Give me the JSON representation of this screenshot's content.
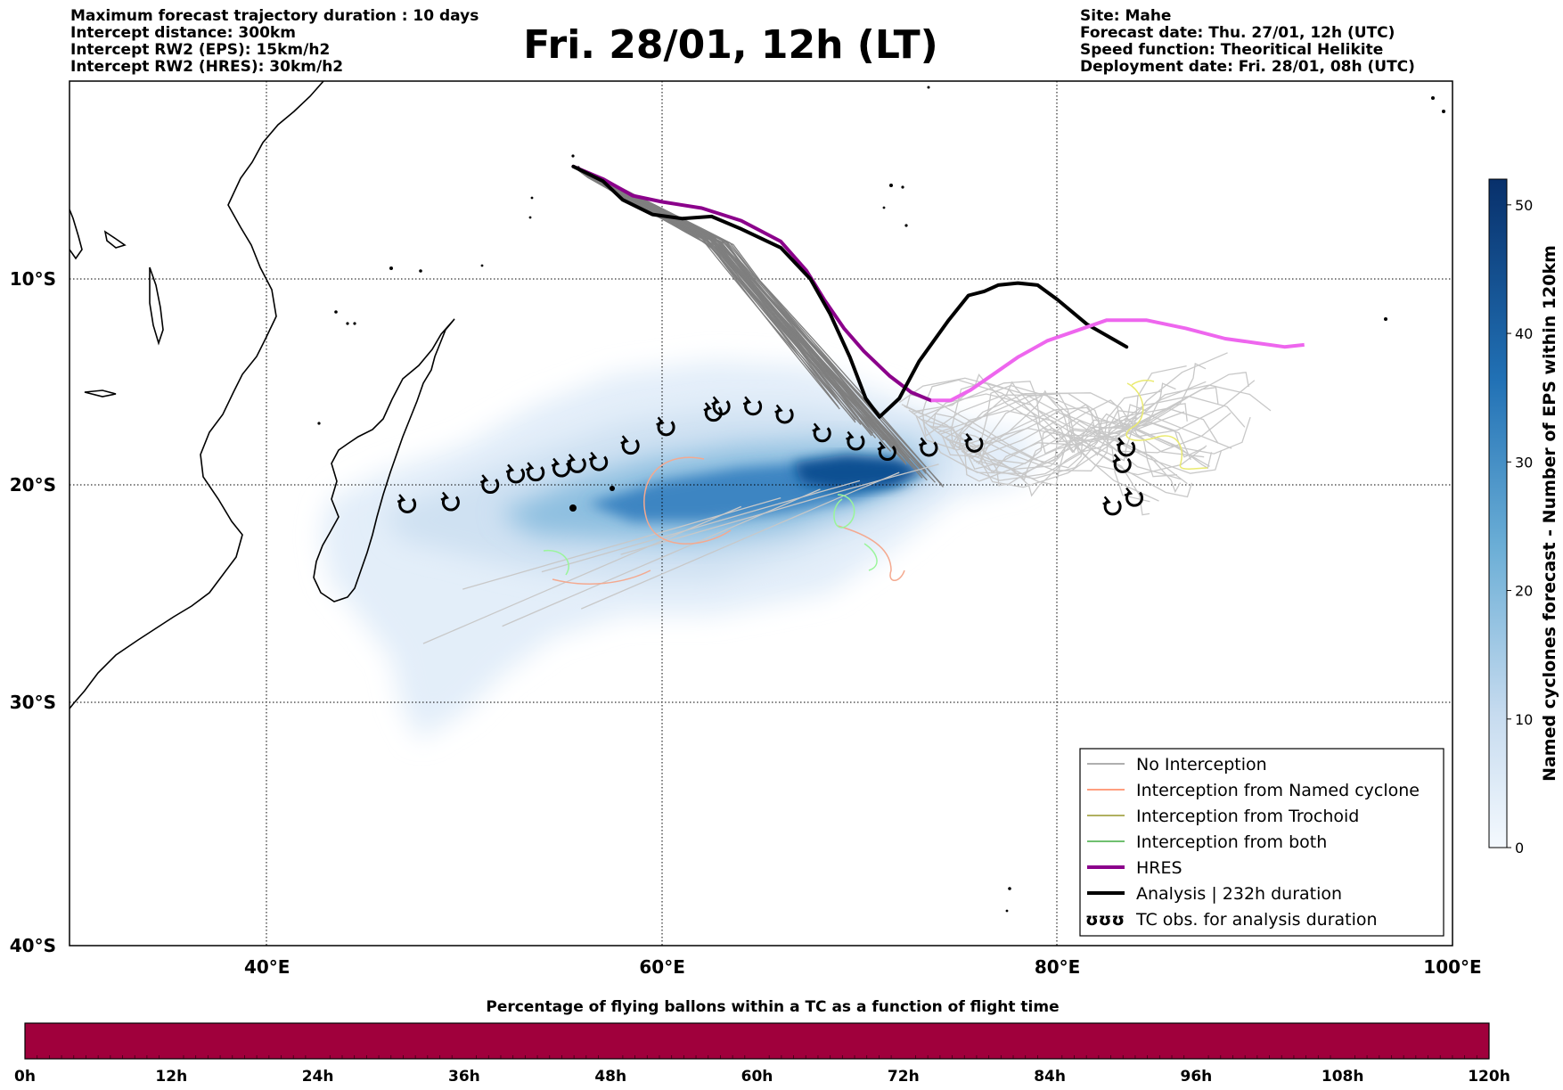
{
  "header": {
    "left": [
      "Maximum forecast trajectory duration : 10 days",
      "Intercept distance: 300km",
      "Intercept RW2 (EPS):  15km/h2",
      "Intercept RW2 (HRES): 30km/h2"
    ],
    "right": [
      "Site: Mahe",
      "Forecast date: Thu. 27/01, 12h (UTC)",
      "Speed function: Theoritical Helikite",
      "Deployment date: Fri. 28/01, 08h (UTC)"
    ],
    "title": "Fri. 28/01, 12h (LT)"
  },
  "map": {
    "lon_range": [
      30,
      100
    ],
    "lat_range": [
      -40,
      -0.5
    ],
    "lon_ticks": [
      {
        "value": 40,
        "label": "40°E"
      },
      {
        "value": 60,
        "label": "60°E"
      },
      {
        "value": 80,
        "label": "80°E"
      },
      {
        "value": 100,
        "label": "100°E"
      }
    ],
    "lat_ticks": [
      {
        "value": -10,
        "label": "10°S"
      },
      {
        "value": -20,
        "label": "20°S"
      },
      {
        "value": -30,
        "label": "30°S"
      },
      {
        "value": -40,
        "label": "40°S"
      }
    ],
    "colors": {
      "no_interception": "#7f7f7f",
      "no_interception_light": "#c8c8c8",
      "named_cyclone": "#ff6633",
      "named_cyclone_light": "#f4a98f",
      "trochoid": "#808000",
      "trochoid_light": "#eaea70",
      "both": "#1a9a1a",
      "both_light": "#9af59a",
      "hres": "#8b008b",
      "hres_light": "#ee66ee",
      "analysis": "#000000",
      "density_low": "#deebf7",
      "density_high": "#08306b"
    },
    "analysis_track": [
      [
        55.5,
        -4.6
      ],
      [
        57,
        -5.3
      ],
      [
        58,
        -6.2
      ],
      [
        59.5,
        -6.9
      ],
      [
        61,
        -7.1
      ],
      [
        62.5,
        -7.0
      ],
      [
        64,
        -7.6
      ],
      [
        66,
        -8.5
      ],
      [
        67.5,
        -10
      ],
      [
        68.5,
        -11.7
      ],
      [
        69.5,
        -13.8
      ],
      [
        70.3,
        -15.8
      ],
      [
        71,
        -16.7
      ],
      [
        72,
        -15.8
      ],
      [
        73,
        -14.0
      ],
      [
        74.5,
        -12.0
      ],
      [
        75.5,
        -10.8
      ],
      [
        76.3,
        -10.6
      ],
      [
        77,
        -10.3
      ],
      [
        78,
        -10.2
      ],
      [
        79,
        -10.3
      ],
      [
        80,
        -11
      ],
      [
        81.5,
        -12.2
      ],
      [
        83.5,
        -13.3
      ]
    ],
    "hres_track": [
      [
        55.5,
        -4.6
      ],
      [
        57,
        -5.2
      ],
      [
        58.5,
        -6.0
      ],
      [
        60,
        -6.3
      ],
      [
        62,
        -6.6
      ],
      [
        64,
        -7.2
      ],
      [
        66,
        -8.2
      ],
      [
        67.3,
        -9.6
      ],
      [
        68.2,
        -11.0
      ],
      [
        69.2,
        -12.4
      ],
      [
        70.2,
        -13.5
      ],
      [
        71.5,
        -14.7
      ],
      [
        72.6,
        -15.5
      ],
      [
        73.6,
        -15.9
      ],
      [
        74.6,
        -15.9
      ],
      [
        75.6,
        -15.4
      ],
      [
        76.8,
        -14.6
      ],
      [
        78,
        -13.8
      ],
      [
        79.5,
        -13.0
      ],
      [
        81,
        -12.5
      ],
      [
        82.5,
        -12.0
      ],
      [
        84.5,
        -12.0
      ],
      [
        86.5,
        -12.4
      ],
      [
        88.5,
        -12.9
      ],
      [
        90,
        -13.1
      ],
      [
        91.5,
        -13.3
      ],
      [
        92.5,
        -13.2
      ]
    ],
    "tc_obs": [
      [
        47.1,
        -20.9
      ],
      [
        49.3,
        -20.8
      ],
      [
        51.3,
        -20.0
      ],
      [
        52.6,
        -19.5
      ],
      [
        53.6,
        -19.4
      ],
      [
        54.9,
        -19.2
      ],
      [
        55.7,
        -19.0
      ],
      [
        56.8,
        -18.9
      ],
      [
        58.4,
        -18.1
      ],
      [
        60.2,
        -17.2
      ],
      [
        62.6,
        -16.5
      ],
      [
        63.0,
        -16.2
      ],
      [
        64.6,
        -16.2
      ],
      [
        66.2,
        -16.6
      ],
      [
        68.1,
        -17.5
      ],
      [
        69.8,
        -17.9
      ],
      [
        71.4,
        -18.4
      ],
      [
        73.5,
        -18.2
      ],
      [
        75.8,
        -18.0
      ],
      [
        83.3,
        -19.0
      ],
      [
        83.5,
        -18.2
      ],
      [
        82.8,
        -21.0
      ],
      [
        83.9,
        -20.6
      ]
    ]
  },
  "legend": [
    {
      "label": "No Interception",
      "color": "#7f7f7f",
      "width": 1.2
    },
    {
      "label": "Interception from Named cyclone",
      "color": "#ff6633",
      "width": 1.2
    },
    {
      "label": "Interception from Trochoid",
      "color": "#808000",
      "width": 1.2
    },
    {
      "label": "Interception from both",
      "color": "#1a9a1a",
      "width": 1.2
    },
    {
      "label": "HRES",
      "color": "#8b008b",
      "width": 4
    },
    {
      "label": "Analysis | 232h duration",
      "color": "#000000",
      "width": 4
    },
    {
      "label": "TC obs. for analysis duration",
      "symbol": "ʊʊʊ"
    }
  ],
  "colorbar": {
    "label": "Named cyclones forecast - Number of EPS within 120km",
    "range": [
      0,
      52
    ],
    "ticks": [
      0,
      10,
      20,
      30,
      40,
      50
    ]
  },
  "bottom_bar": {
    "title": "Percentage of flying ballons within a TC as a function of flight time",
    "ticks": [
      "0h",
      "12h",
      "24h",
      "36h",
      "48h",
      "60h",
      "72h",
      "84h",
      "96h",
      "108h",
      "120h"
    ],
    "fill_color": "#a0003c"
  }
}
